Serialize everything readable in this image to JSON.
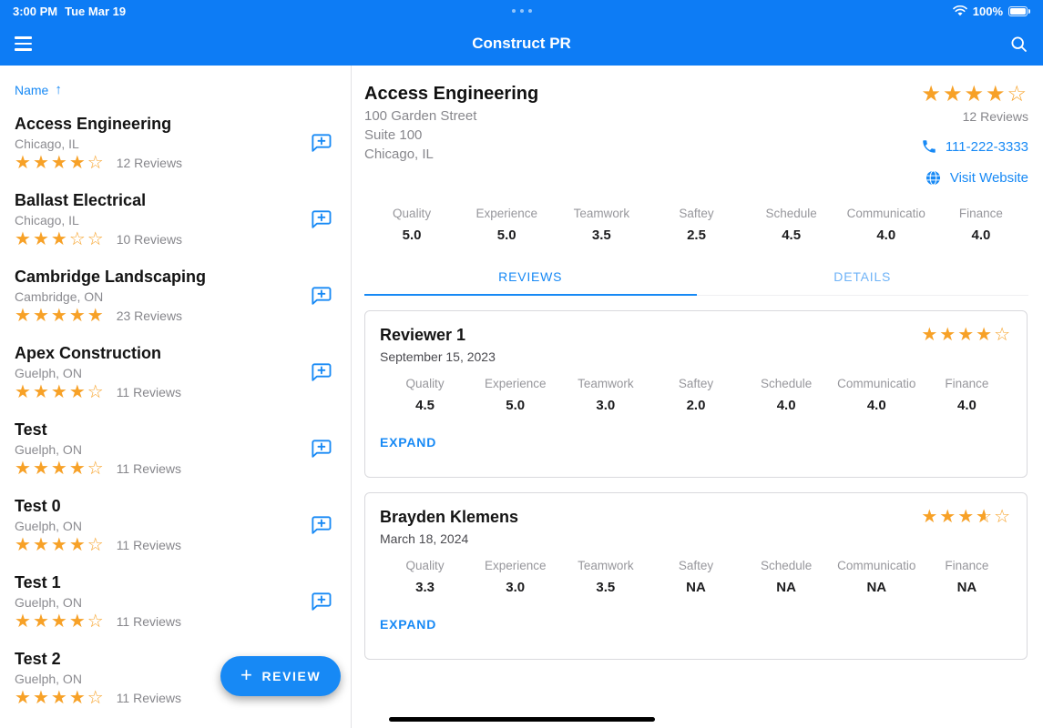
{
  "status_bar": {
    "time": "3:00 PM",
    "date": "Tue Mar 19",
    "battery": "100%"
  },
  "header": {
    "title": "Construct PR"
  },
  "colors": {
    "primary_blue": "#0d7cf5",
    "link_blue": "#1789f5",
    "star_orange": "#f7a127"
  },
  "sidebar": {
    "sort_label": "Name",
    "companies": [
      {
        "name": "Access Engineering",
        "location": "Chicago, IL",
        "stars": 4,
        "reviews": "12 Reviews"
      },
      {
        "name": "Ballast Electrical",
        "location": "Chicago, IL",
        "stars": 3,
        "reviews": "10 Reviews"
      },
      {
        "name": "Cambridge Landscaping",
        "location": "Cambridge, ON",
        "stars": 5,
        "reviews": "23 Reviews"
      },
      {
        "name": "Apex Construction",
        "location": "Guelph, ON",
        "stars": 4,
        "reviews": "11 Reviews"
      },
      {
        "name": "Test",
        "location": "Guelph, ON",
        "stars": 4,
        "reviews": "11 Reviews"
      },
      {
        "name": "Test 0",
        "location": "Guelph, ON",
        "stars": 4,
        "reviews": "11 Reviews"
      },
      {
        "name": "Test 1",
        "location": "Guelph, ON",
        "stars": 4,
        "reviews": "11 Reviews"
      },
      {
        "name": "Test 2",
        "location": "Guelph, ON",
        "stars": 4,
        "reviews": "11 Reviews"
      }
    ]
  },
  "fab": {
    "label": "REVIEW"
  },
  "detail": {
    "name": "Access Engineering",
    "address_line1": "100 Garden Street",
    "address_line2": "Suite 100",
    "address_line3": "Chicago, IL",
    "stars": 4,
    "reviews_label": "12 Reviews",
    "phone": "111-222-3333",
    "website_label": "Visit Website",
    "ratings": [
      {
        "label": "Quality",
        "value": "5.0"
      },
      {
        "label": "Experience",
        "value": "5.0"
      },
      {
        "label": "Teamwork",
        "value": "3.5"
      },
      {
        "label": "Saftey",
        "value": "2.5"
      },
      {
        "label": "Schedule",
        "value": "4.5"
      },
      {
        "label": "Communicatio",
        "value": "4.0"
      },
      {
        "label": "Finance",
        "value": "4.0"
      }
    ]
  },
  "tabs": {
    "reviews": "REVIEWS",
    "details": "DETAILS"
  },
  "reviews": [
    {
      "reviewer": "Reviewer 1",
      "date": "September 15, 2023",
      "stars": 4,
      "expand_label": "EXPAND",
      "ratings": [
        {
          "label": "Quality",
          "value": "4.5"
        },
        {
          "label": "Experience",
          "value": "5.0"
        },
        {
          "label": "Teamwork",
          "value": "3.0"
        },
        {
          "label": "Saftey",
          "value": "2.0"
        },
        {
          "label": "Schedule",
          "value": "4.0"
        },
        {
          "label": "Communicatio",
          "value": "4.0"
        },
        {
          "label": "Finance",
          "value": "4.0"
        }
      ]
    },
    {
      "reviewer": "Brayden Klemens",
      "date": "March 18, 2024",
      "stars": 3.5,
      "expand_label": "EXPAND",
      "ratings": [
        {
          "label": "Quality",
          "value": "3.3"
        },
        {
          "label": "Experience",
          "value": "3.0"
        },
        {
          "label": "Teamwork",
          "value": "3.5"
        },
        {
          "label": "Saftey",
          "value": "NA"
        },
        {
          "label": "Schedule",
          "value": "NA"
        },
        {
          "label": "Communicatio",
          "value": "NA"
        },
        {
          "label": "Finance",
          "value": "NA"
        }
      ]
    }
  ]
}
